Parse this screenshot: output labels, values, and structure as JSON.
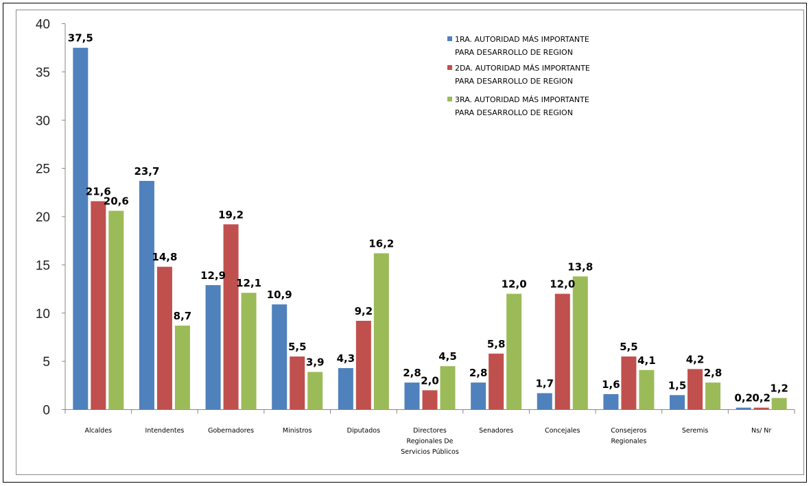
{
  "chart_data": {
    "type": "bar",
    "categories": [
      [
        "Alcaldes"
      ],
      [
        "Intendentes"
      ],
      [
        "Gobernadores"
      ],
      [
        "Ministros"
      ],
      [
        "Diputados"
      ],
      [
        "Directores",
        "Regionales De",
        "Servicios Públicos"
      ],
      [
        "Senadores"
      ],
      [
        "Concejales"
      ],
      [
        "Consejeros",
        "Regionales"
      ],
      [
        "Seremis"
      ],
      [
        "Ns/ Nr"
      ]
    ],
    "series": [
      {
        "name": [
          "1RA. AUTORIDAD MÁS IMPORTANTE",
          "PARA DESARROLLO DE REGION"
        ],
        "color": "#4f81bd",
        "values": [
          37.5,
          23.7,
          12.9,
          10.9,
          4.3,
          2.8,
          2.8,
          1.7,
          1.6,
          1.5,
          0.2
        ],
        "labels": [
          "37,5",
          "23,7",
          "12,9",
          "10,9",
          "4,3",
          "2,8",
          "2,8",
          "1,7",
          "1,6",
          "1,5",
          "0,2"
        ]
      },
      {
        "name": [
          "2DA. AUTORIDAD MÁS IMPORTANTE",
          "PARA DESARROLLO DE REGION"
        ],
        "color": "#c0504d",
        "values": [
          21.6,
          14.8,
          19.2,
          5.5,
          9.2,
          2.0,
          5.8,
          12.0,
          5.5,
          4.2,
          0.2
        ],
        "labels": [
          "21,6",
          "14,8",
          "19,2",
          "5,5",
          "9,2",
          "2,0",
          "5,8",
          "12,0",
          "5,5",
          "4,2",
          "0,2"
        ]
      },
      {
        "name": [
          "3RA. AUTORIDAD MÁS IMPORTANTE",
          "PARA DESARROLLO DE REGION"
        ],
        "color": "#9bbb59",
        "values": [
          20.6,
          8.7,
          12.1,
          3.9,
          16.2,
          4.5,
          12.0,
          13.8,
          4.1,
          2.8,
          1.2
        ],
        "labels": [
          "20,6",
          "8,7",
          "12,1",
          "3,9",
          "16,2",
          "4,5",
          "12,0",
          "13,8",
          "4,1",
          "2,8",
          "1,2"
        ]
      }
    ],
    "yticks": [
      0,
      5,
      10,
      15,
      20,
      25,
      30,
      35,
      40
    ],
    "ylim": [
      0,
      40
    ],
    "grid": false,
    "legend_position": "top-right",
    "title": "",
    "xlabel": "",
    "ylabel": ""
  }
}
